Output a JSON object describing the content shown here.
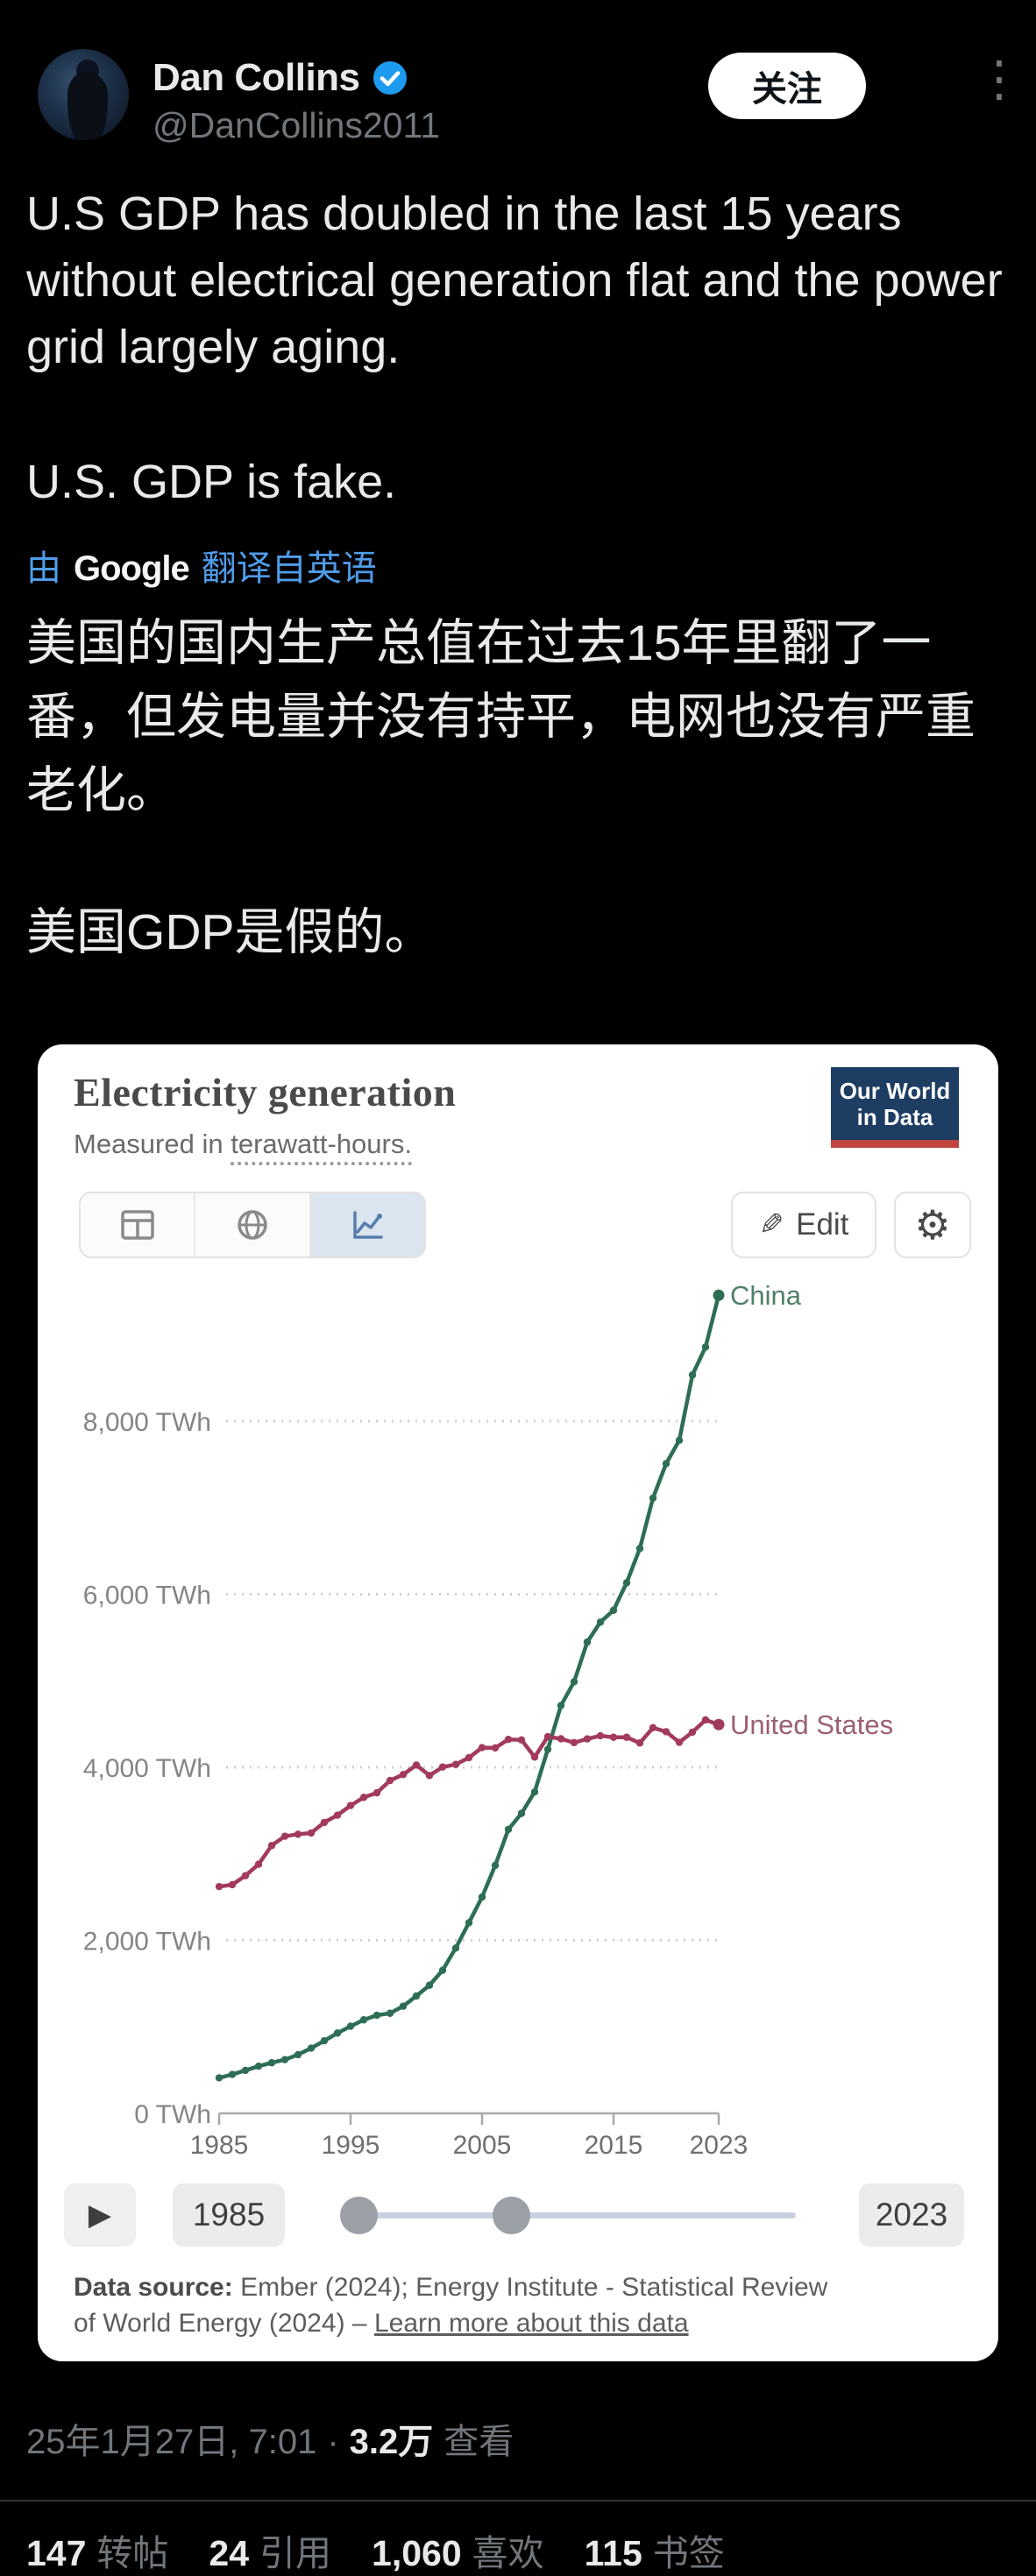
{
  "post": {
    "author": {
      "display_name": "Dan Collins",
      "handle": "@DanCollins2011",
      "verified_badge": "verified"
    },
    "follow_button_label": "关注",
    "body_en_1": "U.S GDP has doubled in the last 15 years without electrical generation flat and the power grid largely aging.",
    "body_en_2": "U.S. GDP is fake.",
    "translation_attribution": {
      "prefix": "由",
      "brand": "Google",
      "suffix": "翻译自英语"
    },
    "body_zh_1": "美国的国内生产总值在过去15年里翻了一番，但发电量并没有持平，电网也没有严重老化。",
    "body_zh_2": "美国GDP是假的。",
    "timestamp": {
      "date": "25年1月27日, 7:01",
      "separator": "·",
      "views_value": "3.2万",
      "views_label": "查看"
    },
    "stats": [
      {
        "value": "147",
        "label": "转帖"
      },
      {
        "value": "24",
        "label": "引用"
      },
      {
        "value": "1,060",
        "label": "喜欢"
      },
      {
        "value": "115",
        "label": "书签"
      }
    ]
  },
  "chart_card": {
    "title": "Electricity generation",
    "subtitle_prefix": "Measured in ",
    "subtitle_underlined": "terawatt-hours.",
    "logo": {
      "line1": "Our World",
      "line2": "in Data"
    },
    "toolbar": {
      "edit_label": "Edit"
    },
    "timeline": {
      "start_year": "1985",
      "end_year": "2023"
    },
    "source_bold": "Data source:",
    "source_rest_line1": " Ember (2024); Energy Institute - Statistical Review",
    "source_rest_line2": "of World Energy (2024) – ",
    "source_link": "Learn more about this data"
  },
  "chart_data": {
    "type": "line",
    "title": "Electricity generation",
    "subtitle": "Measured in terawatt-hours.",
    "unit": "TWh",
    "grid": "horizontal-dotted",
    "legend_position": "end-of-line-labels",
    "ylim": [
      0,
      9600
    ],
    "y_ticks": [
      0,
      2000,
      4000,
      6000,
      8000
    ],
    "x_ticks": [
      1985,
      1995,
      2005,
      2015,
      2023
    ],
    "x": [
      1985,
      1986,
      1987,
      1988,
      1989,
      1990,
      1991,
      1992,
      1993,
      1994,
      1995,
      1996,
      1997,
      1998,
      1999,
      2000,
      2001,
      2002,
      2003,
      2004,
      2005,
      2006,
      2007,
      2008,
      2009,
      2010,
      2011,
      2012,
      2013,
      2014,
      2015,
      2016,
      2017,
      2018,
      2019,
      2020,
      2021,
      2022,
      2023
    ],
    "series": [
      {
        "name": "China",
        "color": "#2d6e54",
        "label_color": "#4f8068",
        "values": [
          411,
          450,
          497,
          545,
          585,
          621,
          678,
          754,
          839,
          928,
          1007,
          1081,
          1134,
          1157,
          1239,
          1356,
          1481,
          1654,
          1911,
          2203,
          2500,
          2866,
          3282,
          3467,
          3715,
          4207,
          4713,
          4988,
          5447,
          5678,
          5815,
          6133,
          6529,
          7111,
          7509,
          7779,
          8534,
          8858,
          9456
        ]
      },
      {
        "name": "United States",
        "color": "#a23a5c",
        "label_color": "#9c5e74",
        "values": [
          2621,
          2643,
          2747,
          2879,
          3096,
          3203,
          3226,
          3240,
          3363,
          3446,
          3558,
          3652,
          3705,
          3847,
          3916,
          4026,
          3905,
          4003,
          4033,
          4111,
          4227,
          4224,
          4322,
          4316,
          4118,
          4354,
          4329,
          4285,
          4328,
          4364,
          4347,
          4347,
          4281,
          4457,
          4411,
          4288,
          4406,
          4547,
          4494
        ]
      }
    ]
  }
}
